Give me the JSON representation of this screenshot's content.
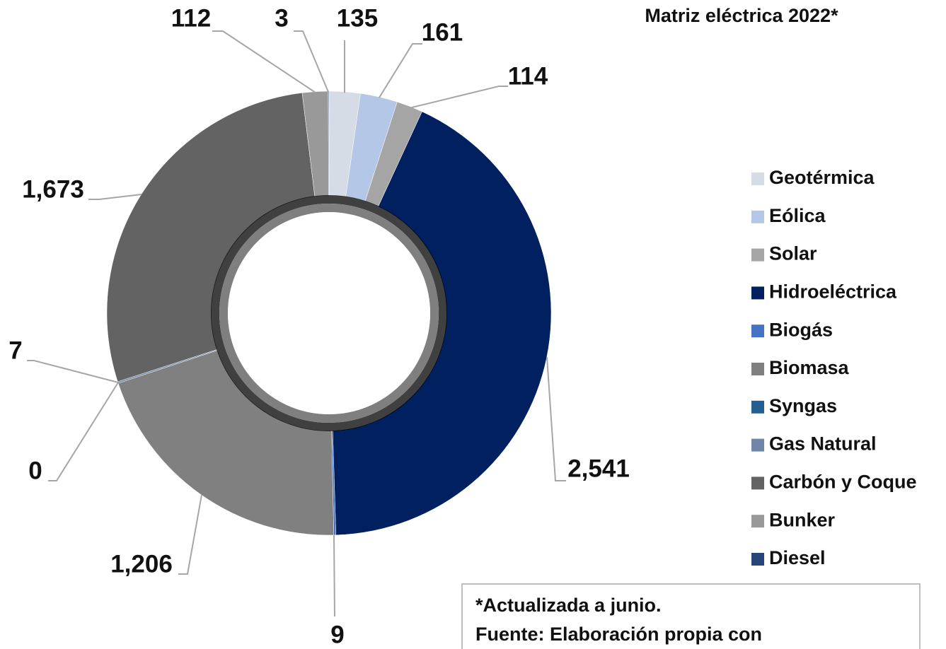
{
  "chart_data": {
    "type": "donut",
    "title": "Matriz eléctrica 2022*",
    "categories": [
      "Geotérmica",
      "Eólica",
      "Solar",
      "Hidroeléctrica",
      "Biogás",
      "Biomasa",
      "Syngas",
      "Gas Natural",
      "Carbón y Coque",
      "Bunker",
      "Diesel"
    ],
    "values": [
      135,
      161,
      114,
      2541,
      9,
      1206,
      0,
      7,
      1673,
      112,
      3
    ],
    "value_labels": [
      "135",
      "161",
      "114",
      "2,541",
      "9",
      "1,206",
      "0",
      "7",
      "1,673",
      "112",
      "3"
    ],
    "colors": [
      "#d6dce5",
      "#b4c7e7",
      "#a5a5a5",
      "#002060",
      "#4472c4",
      "#808080",
      "#255e91",
      "#6f86a8",
      "#636363",
      "#999999",
      "#264478"
    ],
    "legend": "right",
    "note": [
      "*Actualizada a junio.",
      "Fuente: Elaboración propia con"
    ]
  }
}
